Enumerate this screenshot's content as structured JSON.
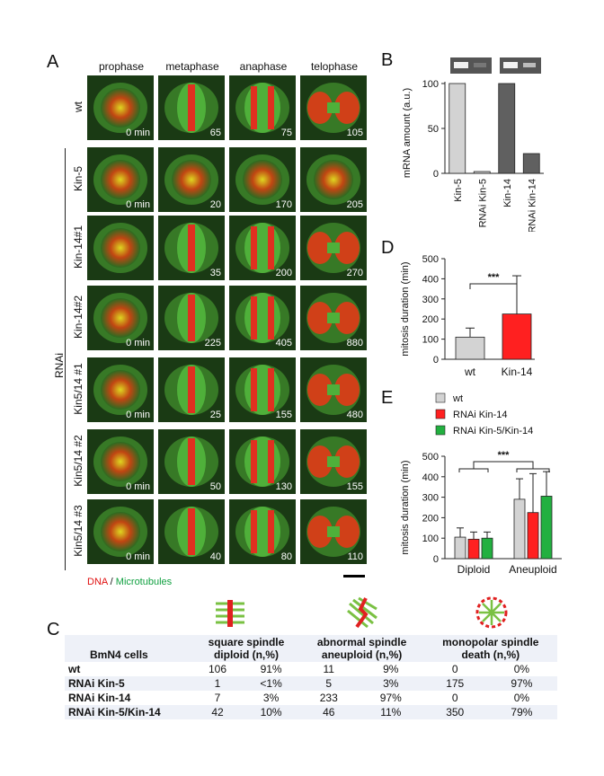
{
  "panelA": {
    "label": "A",
    "stages": [
      "prophase",
      "metaphase",
      "anaphase",
      "telophase"
    ],
    "group_label": "RNAi",
    "rows": [
      {
        "name": "wt",
        "times": [
          "0 min",
          "65",
          "75",
          "105"
        ]
      },
      {
        "name": "Kin-5",
        "times": [
          "0 min",
          "20",
          "170",
          "205"
        ]
      },
      {
        "name": "Kin-14#1",
        "times": [
          "",
          "35",
          "200",
          "270"
        ]
      },
      {
        "name": "Kin-14#2",
        "times": [
          "0 min",
          "225",
          "405",
          "880"
        ]
      },
      {
        "name": "Kin5/14 #1",
        "times": [
          "0 min",
          "25",
          "155",
          "480"
        ]
      },
      {
        "name": "Kin5/14 #2",
        "times": [
          "0 min",
          "50",
          "130",
          "155"
        ]
      },
      {
        "name": "Kin5/14 #3",
        "times": [
          "0 min",
          "40",
          "80",
          "110"
        ]
      }
    ],
    "caption_dna": "DNA",
    "caption_sep": " / ",
    "caption_mt": "Microtubules"
  },
  "chart_data": [
    {
      "id": "B",
      "type": "bar",
      "categories": [
        "Kin-5",
        "RNAi Kin-5",
        "Kin-14",
        "RNAi Kin-14"
      ],
      "values": [
        100,
        2,
        100,
        22
      ],
      "colors": [
        "#d3d3d3",
        "#d3d3d3",
        "#606060",
        "#606060"
      ],
      "ylabel": "mRNA amount (a.u.)",
      "ylim": [
        0,
        100
      ],
      "yticks": [
        0,
        50,
        100
      ]
    },
    {
      "id": "D",
      "type": "bar",
      "categories": [
        "wt",
        "Kin-14"
      ],
      "values": [
        110,
        225
      ],
      "errors": [
        45,
        190
      ],
      "colors": [
        "#d3d3d3",
        "#ff2020"
      ],
      "ylabel": "mitosis duration (min)",
      "ylim": [
        0,
        500
      ],
      "yticks": [
        0,
        100,
        200,
        300,
        400,
        500
      ],
      "significance": "***"
    },
    {
      "id": "E",
      "type": "bar",
      "categories": [
        "Diploid",
        "Aneuploid"
      ],
      "series": [
        {
          "name": "wt",
          "color": "#d3d3d3",
          "values": [
            105,
            290
          ],
          "errors": [
            45,
            100
          ]
        },
        {
          "name": "RNAi Kin-14",
          "color": "#ff2020",
          "values": [
            95,
            225
          ],
          "errors": [
            35,
            190
          ]
        },
        {
          "name": "RNAi Kin-5/Kin-14",
          "color": "#22b040",
          "values": [
            100,
            305
          ],
          "errors": [
            30,
            120
          ]
        }
      ],
      "ylabel": "mitosis duration (min)",
      "ylim": [
        0,
        500
      ],
      "yticks": [
        0,
        100,
        200,
        300,
        400,
        500
      ],
      "significance": "***",
      "legend": "top-left"
    }
  ],
  "panelB": {
    "label": "B"
  },
  "panelD": {
    "label": "D"
  },
  "panelE": {
    "label": "E"
  },
  "panelC": {
    "label": "C",
    "col0": "BmN4 cells",
    "groups": [
      {
        "title": "square spindle",
        "sub": "diploid (n,%)"
      },
      {
        "title": "abnormal spindle",
        "sub": "aneuploid (n,%)"
      },
      {
        "title": "monopolar spindle",
        "sub": "death (n,%)"
      }
    ],
    "rows": [
      {
        "name": "wt",
        "vals": [
          "106",
          "91%",
          "11",
          "9%",
          "0",
          "0%"
        ]
      },
      {
        "name": "RNAi Kin-5",
        "vals": [
          "1",
          "<1%",
          "5",
          "3%",
          "175",
          "97%"
        ]
      },
      {
        "name": "RNAi Kin-14",
        "vals": [
          "7",
          "3%",
          "233",
          "97%",
          "0",
          "0%"
        ]
      },
      {
        "name": "RNAi Kin-5/Kin-14",
        "vals": [
          "42",
          "10%",
          "46",
          "11%",
          "350",
          "79%"
        ]
      }
    ]
  }
}
